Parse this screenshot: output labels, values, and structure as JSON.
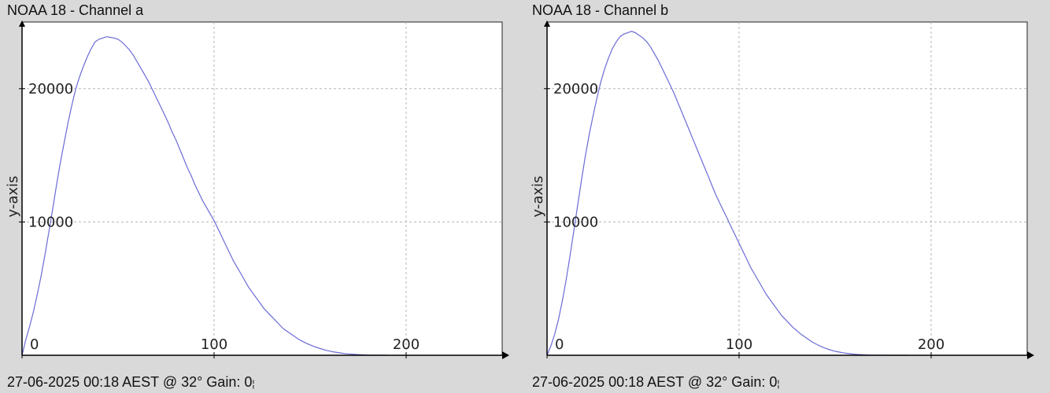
{
  "panels": [
    {
      "title": "NOAA 18 - Channel a",
      "footer": "27-06-2025 00:18 AEST @ 32° Gain: 0",
      "footer_tail": "¦"
    },
    {
      "title": "NOAA 18 - Channel b",
      "footer": "27-06-2025 00:18 AEST @ 32° Gain: 0",
      "footer_tail": "¦"
    }
  ],
  "chart_data": [
    {
      "type": "line",
      "title": "NOAA 18 - Channel a",
      "ylabel": "y-axis",
      "xlabel": "",
      "xlim": [
        0,
        250
      ],
      "ylim": [
        0,
        25000
      ],
      "x_ticks": [
        0,
        100,
        200
      ],
      "y_ticks": [
        10000,
        20000
      ],
      "grid": true,
      "line_color": "#6b6bd6",
      "series": [
        {
          "x": [
            0,
            2,
            4,
            6,
            8,
            10,
            12,
            14,
            16,
            18,
            20,
            22,
            24,
            26,
            28,
            30,
            32,
            34,
            36,
            38,
            40,
            42,
            44,
            46,
            48,
            50,
            52,
            54,
            56,
            58,
            60,
            62,
            64,
            66,
            68,
            70,
            72,
            74,
            76,
            78,
            80,
            82,
            84,
            86,
            88,
            90,
            92,
            94,
            96,
            98,
            100,
            102,
            104,
            106,
            108,
            110,
            112,
            114,
            116,
            118,
            120,
            122,
            124,
            126,
            128,
            130,
            132,
            134,
            136,
            138,
            140,
            142,
            144,
            146,
            148,
            150,
            152,
            154,
            156,
            158,
            160,
            162,
            164,
            166,
            168,
            170,
            172,
            174,
            176,
            178,
            180,
            182,
            184,
            186,
            188,
            190
          ],
          "y": [
            0,
            1200,
            2200,
            3300,
            4600,
            6000,
            7600,
            9300,
            11000,
            12800,
            14500,
            16000,
            17500,
            18800,
            20000,
            20900,
            21700,
            22400,
            23000,
            23500,
            23700,
            23800,
            23900,
            23850,
            23800,
            23700,
            23500,
            23200,
            22900,
            22500,
            22000,
            21500,
            21000,
            20500,
            19900,
            19300,
            18700,
            18100,
            17500,
            16800,
            16200,
            15500,
            14800,
            14100,
            13500,
            12800,
            12200,
            11600,
            11100,
            10600,
            10100,
            9500,
            8900,
            8300,
            7700,
            7100,
            6600,
            6100,
            5600,
            5100,
            4700,
            4300,
            3900,
            3500,
            3200,
            2900,
            2600,
            2300,
            2000,
            1800,
            1600,
            1400,
            1200,
            1050,
            900,
            780,
            660,
            560,
            470,
            390,
            320,
            260,
            210,
            170,
            130,
            100,
            80,
            60,
            45,
            30,
            20,
            12,
            8,
            5,
            3,
            0
          ]
        }
      ]
    },
    {
      "type": "line",
      "title": "NOAA 18 - Channel b",
      "ylabel": "y-axis",
      "xlabel": "",
      "xlim": [
        0,
        250
      ],
      "ylim": [
        0,
        25000
      ],
      "x_ticks": [
        0,
        100,
        200
      ],
      "y_ticks": [
        10000,
        20000
      ],
      "grid": true,
      "line_color": "#6b6bd6",
      "series": [
        {
          "x": [
            0,
            2,
            4,
            6,
            8,
            10,
            12,
            14,
            16,
            18,
            20,
            22,
            24,
            26,
            28,
            30,
            32,
            34,
            36,
            38,
            40,
            42,
            44,
            46,
            48,
            50,
            52,
            54,
            56,
            58,
            60,
            62,
            64,
            66,
            68,
            70,
            72,
            74,
            76,
            78,
            80,
            82,
            84,
            86,
            88,
            90,
            92,
            94,
            96,
            98,
            100,
            102,
            104,
            106,
            108,
            110,
            112,
            114,
            116,
            118,
            120,
            122,
            124,
            126,
            128,
            130,
            132,
            134,
            136,
            138,
            140,
            142,
            144,
            146,
            148,
            150,
            152,
            154,
            156,
            158,
            160,
            162,
            164,
            166,
            168,
            170,
            172,
            174,
            176,
            178,
            180,
            182,
            184,
            186,
            188
          ],
          "y": [
            0,
            700,
            1600,
            2700,
            4100,
            5700,
            7500,
            9400,
            11300,
            13200,
            15000,
            16600,
            18000,
            19300,
            20500,
            21500,
            22300,
            23000,
            23500,
            23900,
            24100,
            24200,
            24300,
            24200,
            24000,
            23800,
            23500,
            23100,
            22600,
            22100,
            21500,
            20900,
            20300,
            19700,
            19000,
            18300,
            17600,
            16900,
            16200,
            15500,
            14800,
            14100,
            13400,
            12700,
            12000,
            11400,
            10800,
            10200,
            9600,
            9000,
            8400,
            7800,
            7200,
            6600,
            6100,
            5600,
            5100,
            4600,
            4200,
            3800,
            3400,
            3000,
            2700,
            2400,
            2100,
            1850,
            1600,
            1400,
            1200,
            1000,
            850,
            700,
            580,
            470,
            380,
            300,
            240,
            190,
            150,
            110,
            85,
            60,
            45,
            30,
            20,
            12,
            8,
            5,
            3,
            1,
            0,
            0,
            0,
            0,
            0
          ]
        }
      ]
    }
  ]
}
